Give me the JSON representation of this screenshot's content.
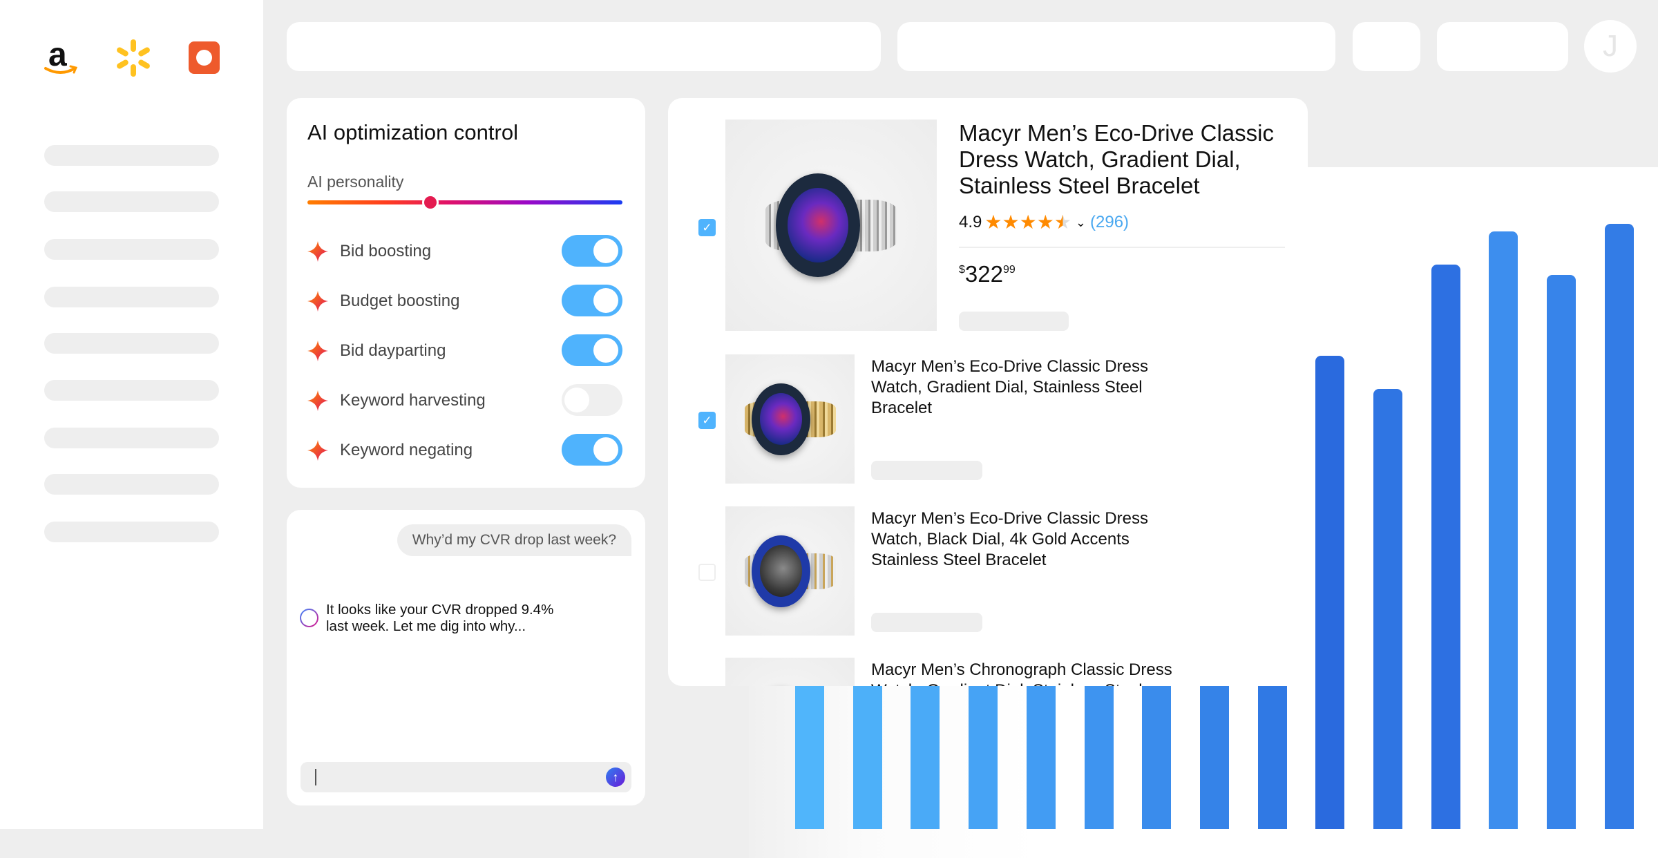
{
  "sidebar": {
    "logos": [
      "amazon-logo",
      "walmart-logo",
      "orange-square-logo"
    ],
    "placeholder_items": 9
  },
  "header": {
    "avatar_initial": "J"
  },
  "ai_panel": {
    "title": "AI optimization control",
    "personality_label": "AI personality",
    "personality_level_percent": 39,
    "toggles": [
      {
        "label": "Bid boosting",
        "on": true
      },
      {
        "label": "Budget boosting",
        "on": true
      },
      {
        "label": "Bid dayparting",
        "on": true
      },
      {
        "label": "Keyword harvesting",
        "on": false
      },
      {
        "label": "Keyword negating",
        "on": true
      }
    ],
    "toggle_on_color": "#4fb3fd"
  },
  "chat": {
    "user_message": "Why’d my CVR drop last week?",
    "ai_message": "It looks like your CVR dropped 9.4%\nlast week.  Let me dig into why...",
    "input_value": "",
    "send_icon": "arrow-up-icon"
  },
  "products": {
    "featured": {
      "checked": true,
      "title": "Macyr Men’s Eco-Drive Classic Dress Watch, Gradient Dial, Stainless Steel Bracelet",
      "rating": "4.9",
      "stars": 4.5,
      "review_count": "(296)",
      "price_symbol": "$",
      "price_whole": "322",
      "price_fraction": "99"
    },
    "items": [
      {
        "checked": true,
        "title": "Macyr Men’s Eco-Drive Classic Dress Watch, Gradient Dial, Stainless Steel Bracelet"
      },
      {
        "checked": false,
        "title": "Macyr Men’s Eco-Drive Classic Dress Watch, Black Dial, 4k Gold Accents Stainless Steel Bracelet"
      },
      {
        "checked": false,
        "title": "Macyr Men’s Chronograph Classic Dress Watch, Gradient Dial, Stainless Steel"
      }
    ],
    "star_color": "#ff8a00",
    "link_color": "#4aa8f0"
  },
  "chart_data": {
    "type": "bar",
    "title": "",
    "xlabel": "",
    "ylabel": "",
    "ylim": [
      0,
      100
    ],
    "grid": false,
    "values": [
      35,
      40,
      38,
      45,
      50,
      48,
      55,
      60,
      65,
      71.5,
      66.5,
      85.3,
      90.3,
      83.7,
      91.4
    ],
    "colors": [
      "#50b5fb",
      "#4db0f9",
      "#4aaaf7",
      "#46a3f5",
      "#429cf3",
      "#3e94f0",
      "#3a8cec",
      "#3583e8",
      "#3079e4",
      "#2a6ade",
      "#2f75e3",
      "#2d70e2",
      "#3d8eee",
      "#3784ea",
      "#337ce6"
    ]
  }
}
